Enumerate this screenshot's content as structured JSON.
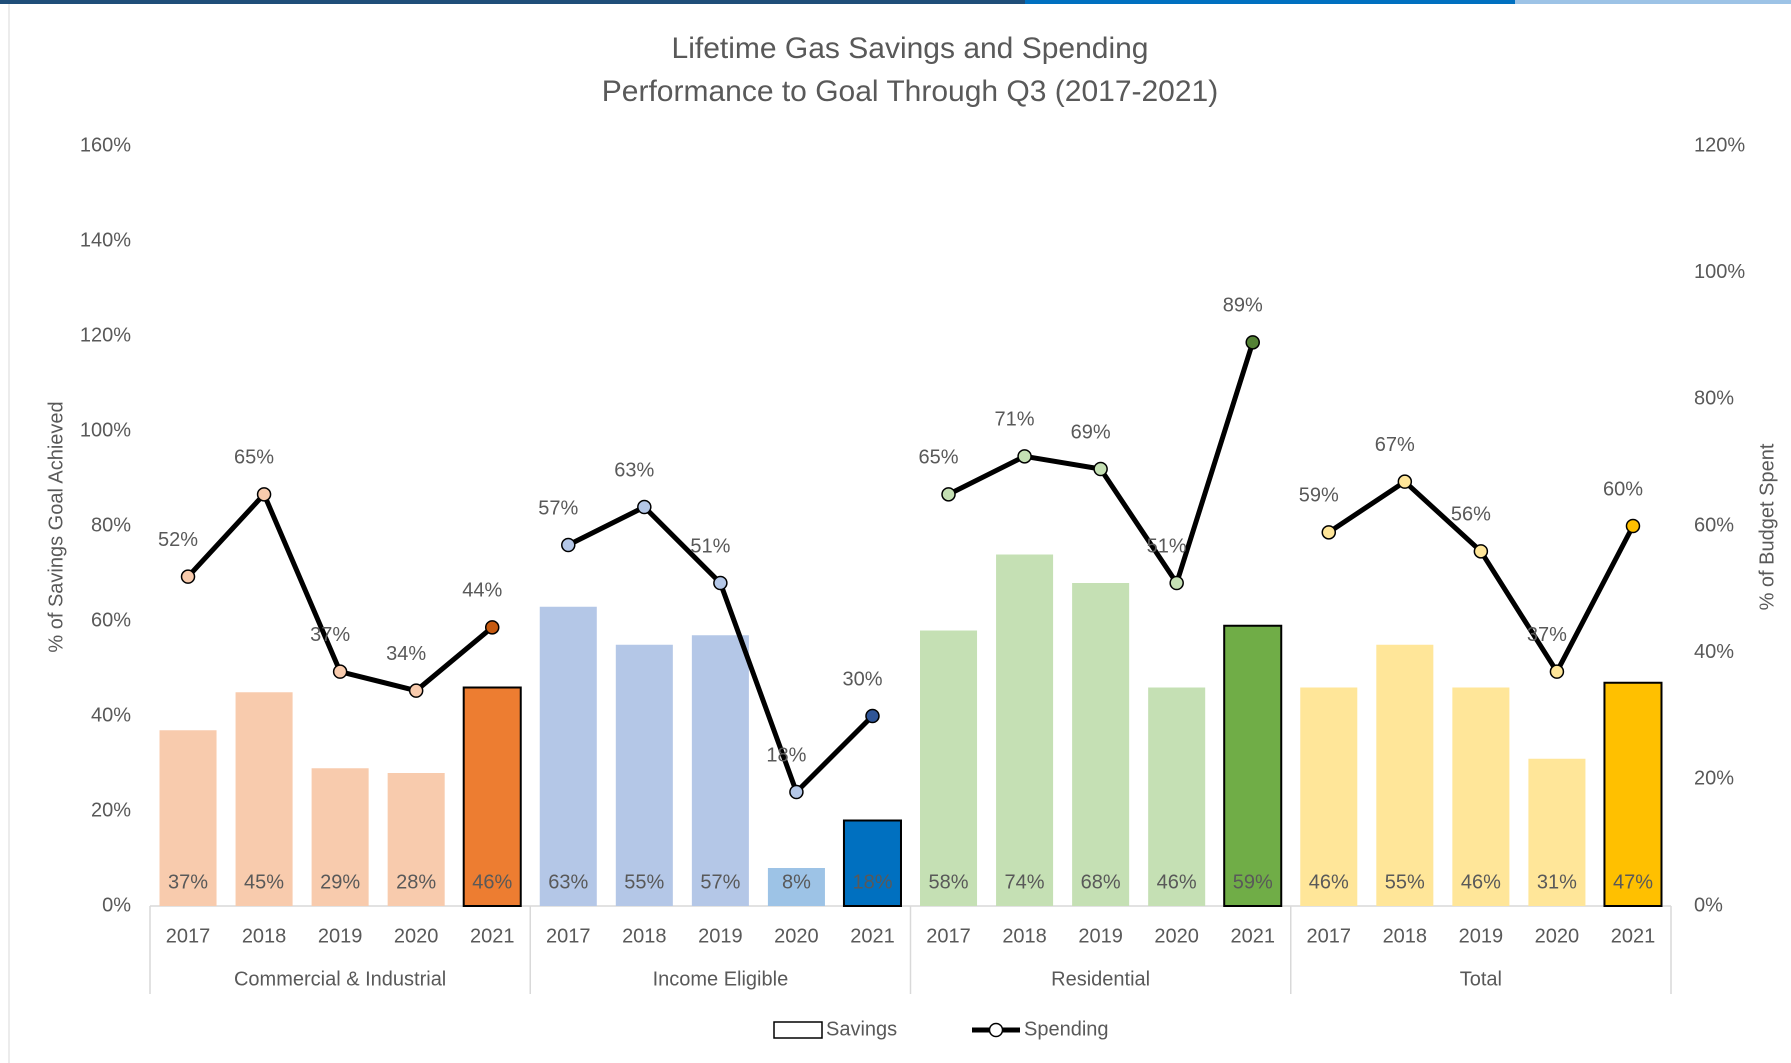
{
  "chart_data": {
    "type": "bar",
    "title": "Lifetime Gas Savings and Spending",
    "subtitle": "Performance to Goal Through Q3 (2017-2021)",
    "y_label": "% of Savings Goal Achieved",
    "y2_label": "% of Budget Spent",
    "categories": [
      "2017",
      "2018",
      "2019",
      "2020",
      "2021",
      "2017",
      "2018",
      "2019",
      "2020",
      "2021",
      "2017",
      "2018",
      "2019",
      "2020",
      "2021",
      "2017",
      "2018",
      "2019",
      "2020",
      "2021"
    ],
    "groups": [
      "Commercial & Industrial",
      "Income Eligible",
      "Residential",
      "Total"
    ],
    "series": [
      {
        "name": "Savings",
        "type": "bar",
        "values": [
          37,
          45,
          29,
          28,
          46,
          63,
          55,
          57,
          8,
          18,
          58,
          74,
          68,
          46,
          59,
          46,
          55,
          46,
          31,
          47
        ],
        "value_labels": [
          "37%",
          "45%",
          "29%",
          "28%",
          "46%",
          "63%",
          "55%",
          "57%",
          "8%",
          "18%",
          "58%",
          "74%",
          "68%",
          "46%",
          "59%",
          "46%",
          "55%",
          "46%",
          "31%",
          "47%"
        ],
        "colors": [
          "#f8cbad",
          "#f8cbad",
          "#f8cbad",
          "#f8cbad",
          "#ed7d31",
          "#b4c7e7",
          "#b4c7e7",
          "#b4c7e7",
          "#9dc3e6",
          "#0070c0",
          "#c5e0b4",
          "#c5e0b4",
          "#c5e0b4",
          "#c5e0b4",
          "#70ad47",
          "#ffe699",
          "#ffe699",
          "#ffe699",
          "#ffe699",
          "#ffc000"
        ],
        "edgecolors": [
          "none",
          "none",
          "none",
          "none",
          "#000000",
          "none",
          "none",
          "none",
          "none",
          "#000000",
          "none",
          "none",
          "none",
          "none",
          "#000000",
          "none",
          "none",
          "none",
          "none",
          "#000000"
        ]
      },
      {
        "name": "Spending",
        "type": "line",
        "axis": "y2",
        "color": "#000000",
        "values": [
          52,
          65,
          37,
          34,
          44,
          57,
          63,
          51,
          18,
          30,
          65,
          71,
          69,
          51,
          89,
          59,
          67,
          56,
          37,
          60
        ],
        "value_labels": [
          "52%",
          "65%",
          "37%",
          "34%",
          "44%",
          "57%",
          "63%",
          "51%",
          "18%",
          "30%",
          "65%",
          "71%",
          "69%",
          "51%",
          "89%",
          "59%",
          "67%",
          "56%",
          "37%",
          "60%"
        ],
        "colors": [
          "#f8cbad",
          "#f8cbad",
          "#f8cbad",
          "#f8cbad",
          "#c55a11",
          "#b4c7e7",
          "#b4c7e7",
          "#b4c7e7",
          "#b4c7e7",
          "#2f5597",
          "#c5e0b4",
          "#c5e0b4",
          "#c5e0b4",
          "#c5e0b4",
          "#548235",
          "#ffe699",
          "#ffe699",
          "#ffe699",
          "#ffe699",
          "#ffc000"
        ]
      }
    ],
    "ylim": [
      0,
      160
    ],
    "yticks": [
      {
        "value": 0,
        "label": "0%"
      },
      {
        "value": 20,
        "label": "20%"
      },
      {
        "value": 40,
        "label": "40%"
      },
      {
        "value": 60,
        "label": "60%"
      },
      {
        "value": 80,
        "label": "80%"
      },
      {
        "value": 100,
        "label": "100%"
      },
      {
        "value": 120,
        "label": "120%"
      },
      {
        "value": 140,
        "label": "140%"
      },
      {
        "value": 160,
        "label": "160%"
      }
    ],
    "y2lim": [
      0,
      120
    ],
    "y2ticks": [
      {
        "value": 0,
        "label": "0%"
      },
      {
        "value": 20,
        "label": "20%"
      },
      {
        "value": 40,
        "label": "40%"
      },
      {
        "value": 60,
        "label": "60%"
      },
      {
        "value": 80,
        "label": "80%"
      },
      {
        "value": 100,
        "label": "100%"
      },
      {
        "value": 120,
        "label": "120%"
      }
    ],
    "grid": false,
    "legend": "bottom"
  }
}
